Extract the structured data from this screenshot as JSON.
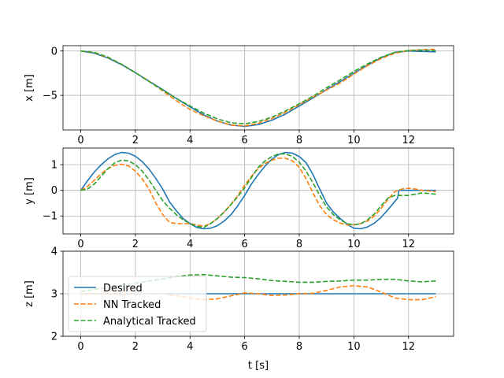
{
  "chart_data": {
    "type": "line",
    "colors": {
      "Desired": "#1f77b4",
      "NN Tracked": "#ff7f0e",
      "Analytical Tracked": "#2ca02c",
      "grid": "#b0b0b0",
      "axes": "#000000"
    },
    "grid": true,
    "xlabel": "t [s]",
    "xlim": [
      -0.65,
      13.65
    ],
    "xticks": [
      0,
      2,
      4,
      6,
      8,
      10,
      12
    ],
    "xtick_labels": [
      "0",
      "2",
      "4",
      "6",
      "8",
      "10",
      "12"
    ],
    "legend": {
      "placement": "lower-left of bottom subplot",
      "entries": [
        {
          "name": "Desired",
          "style": "solid"
        },
        {
          "name": "NN Tracked",
          "style": "dashed"
        },
        {
          "name": "Analytical Tracked",
          "style": "dashed"
        }
      ]
    },
    "subplots": [
      {
        "ylabel": "x [m]",
        "ylim": [
          -8.9,
          0.6
        ],
        "yticks": [
          0,
          -5
        ],
        "ytick_labels": [
          "0",
          "−5"
        ],
        "series": [
          {
            "name": "Desired",
            "style": "solid",
            "x": [
              0,
              0.5,
              1,
              1.5,
              2,
              2.5,
              3,
              3.5,
              4,
              4.5,
              5,
              5.5,
              6,
              6.5,
              7,
              7.5,
              8,
              8.5,
              9,
              9.5,
              10,
              10.5,
              11,
              11.5,
              12,
              12.5,
              13
            ],
            "y": [
              0,
              -0.25,
              -0.8,
              -1.55,
              -2.45,
              -3.4,
              -4.35,
              -5.35,
              -6.3,
              -7.2,
              -7.9,
              -8.35,
              -8.5,
              -8.3,
              -7.8,
              -7.1,
              -6.2,
              -5.3,
              -4.35,
              -3.45,
              -2.5,
              -1.6,
              -0.75,
              -0.15,
              0,
              -0.05,
              -0.1
            ]
          },
          {
            "name": "NN Tracked",
            "style": "dashed",
            "x": [
              0,
              0.5,
              1,
              1.5,
              2,
              2.5,
              3,
              3.5,
              4,
              4.5,
              5,
              5.5,
              6,
              6.5,
              7,
              7.5,
              8,
              8.5,
              9,
              9.5,
              10,
              10.5,
              11,
              11.5,
              12,
              12.5,
              13
            ],
            "y": [
              0,
              -0.2,
              -0.75,
              -1.5,
              -2.45,
              -3.4,
              -4.5,
              -5.6,
              -6.6,
              -7.3,
              -7.9,
              -8.35,
              -8.45,
              -8.15,
              -7.6,
              -6.9,
              -6.05,
              -5.2,
              -4.4,
              -3.6,
              -2.6,
              -1.65,
              -0.85,
              -0.25,
              0.05,
              0.15,
              0.2
            ]
          },
          {
            "name": "Analytical Tracked",
            "style": "dashed",
            "x": [
              0,
              0.5,
              1,
              1.5,
              2,
              2.5,
              3,
              3.5,
              4,
              4.5,
              5,
              5.5,
              6,
              6.5,
              7,
              7.5,
              8,
              8.5,
              9,
              9.5,
              10,
              10.5,
              11,
              11.5,
              12,
              12.5,
              13
            ],
            "y": [
              0,
              -0.15,
              -0.7,
              -1.5,
              -2.45,
              -3.45,
              -4.4,
              -5.35,
              -6.2,
              -7.0,
              -7.65,
              -8.1,
              -8.2,
              -7.95,
              -7.45,
              -6.75,
              -5.95,
              -5.1,
              -4.15,
              -3.25,
              -2.3,
              -1.45,
              -0.7,
              -0.15,
              0.05,
              0.1,
              0.05
            ]
          }
        ]
      },
      {
        "ylabel": "y [m]",
        "ylim": [
          -1.7,
          1.65
        ],
        "yticks": [
          1,
          0,
          -1
        ],
        "ytick_labels": [
          "1",
          "0",
          "−1"
        ],
        "series": [
          {
            "name": "Desired",
            "style": "solid",
            "x": [
              0,
              0.25,
              0.5,
              0.75,
              1,
              1.25,
              1.5,
              1.75,
              2,
              2.25,
              2.5,
              2.75,
              3,
              3.25,
              3.5,
              3.75,
              4,
              4.25,
              4.5,
              4.75,
              5,
              5.25,
              5.5,
              5.75,
              6,
              6.25,
              6.5,
              6.75,
              7,
              7.25,
              7.5,
              7.75,
              8,
              8.25,
              8.5,
              8.75,
              9,
              9.25,
              9.5,
              9.75,
              10,
              10.25,
              10.5,
              10.75,
              11,
              11.25,
              11.5,
              11.6,
              11.65,
              12,
              12.5,
              13
            ],
            "y": [
              0,
              0.38,
              0.72,
              1.0,
              1.23,
              1.4,
              1.48,
              1.45,
              1.33,
              1.12,
              0.83,
              0.46,
              0.05,
              -0.45,
              -0.8,
              -1.1,
              -1.3,
              -1.45,
              -1.5,
              -1.48,
              -1.38,
              -1.2,
              -0.95,
              -0.6,
              -0.2,
              0.25,
              0.62,
              0.95,
              1.22,
              1.4,
              1.48,
              1.45,
              1.32,
              1.08,
              0.62,
              0.05,
              -0.5,
              -0.85,
              -1.1,
              -1.32,
              -1.48,
              -1.5,
              -1.43,
              -1.28,
              -1.05,
              -0.75,
              -0.43,
              -0.3,
              0.0,
              0.0,
              0.0,
              0.0
            ]
          },
          {
            "name": "NN Tracked",
            "style": "dashed",
            "x": [
              0,
              0.25,
              0.5,
              0.75,
              1,
              1.25,
              1.5,
              1.75,
              2,
              2.25,
              2.5,
              2.75,
              3,
              3.25,
              3.5,
              3.75,
              4,
              4.25,
              4.5,
              4.75,
              5,
              5.25,
              5.5,
              5.75,
              6,
              6.25,
              6.5,
              6.75,
              7,
              7.25,
              7.5,
              7.75,
              8,
              8.25,
              8.5,
              8.75,
              9,
              9.25,
              9.5,
              9.75,
              10,
              10.25,
              10.5,
              10.75,
              11,
              11.25,
              11.5,
              11.75,
              12,
              12.25,
              12.5,
              13
            ],
            "y": [
              0,
              0.15,
              0.4,
              0.65,
              0.85,
              0.98,
              1.02,
              0.95,
              0.75,
              0.45,
              0.05,
              -0.5,
              -0.95,
              -1.25,
              -1.3,
              -1.3,
              -1.3,
              -1.35,
              -1.4,
              -1.3,
              -1.1,
              -0.85,
              -0.55,
              -0.2,
              0.2,
              0.55,
              0.85,
              1.05,
              1.18,
              1.25,
              1.25,
              1.15,
              0.9,
              0.45,
              -0.1,
              -0.6,
              -0.95,
              -1.15,
              -1.28,
              -1.35,
              -1.35,
              -1.3,
              -1.2,
              -1.0,
              -0.7,
              -0.35,
              -0.05,
              0.05,
              0.08,
              0.05,
              0.0,
              -0.05
            ]
          },
          {
            "name": "Analytical Tracked",
            "style": "dashed",
            "x": [
              0,
              0.25,
              0.5,
              0.75,
              1,
              1.25,
              1.5,
              1.75,
              2,
              2.25,
              2.5,
              2.75,
              3,
              3.25,
              3.5,
              3.75,
              4,
              4.25,
              4.5,
              4.75,
              5,
              5.25,
              5.5,
              5.75,
              6,
              6.25,
              6.5,
              6.75,
              7,
              7.25,
              7.5,
              7.75,
              8,
              8.25,
              8.5,
              8.75,
              9,
              9.25,
              9.5,
              9.75,
              10,
              10.25,
              10.5,
              10.75,
              11,
              11.25,
              11.5,
              11.75,
              12,
              12.25,
              12.5,
              13
            ],
            "y": [
              0,
              0.05,
              0.25,
              0.55,
              0.85,
              1.08,
              1.18,
              1.15,
              1.0,
              0.75,
              0.4,
              0.0,
              -0.4,
              -0.7,
              -0.95,
              -1.15,
              -1.3,
              -1.4,
              -1.45,
              -1.3,
              -1.1,
              -0.85,
              -0.55,
              -0.25,
              0.1,
              0.5,
              0.9,
              1.15,
              1.32,
              1.42,
              1.42,
              1.32,
              1.1,
              0.75,
              0.3,
              -0.2,
              -0.65,
              -0.95,
              -1.15,
              -1.3,
              -1.35,
              -1.3,
              -1.15,
              -0.92,
              -0.6,
              -0.3,
              -0.2,
              -0.2,
              -0.2,
              -0.15,
              -0.1,
              -0.15
            ]
          }
        ]
      },
      {
        "ylabel": "z [m]",
        "ylim": [
          2,
          4
        ],
        "yticks": [
          4,
          3,
          2
        ],
        "ytick_labels": [
          "4",
          "3",
          "2"
        ],
        "series": [
          {
            "name": "Desired",
            "style": "solid",
            "x": [
              0,
              13
            ],
            "y": [
              3,
              3
            ]
          },
          {
            "name": "NN Tracked",
            "style": "dashed",
            "x": [
              0,
              1,
              2,
              3,
              3.5,
              4,
              4.5,
              5,
              5.5,
              6,
              6.5,
              7,
              7.5,
              8,
              8.5,
              9,
              9.5,
              10,
              10.5,
              11,
              11.5,
              12,
              12.5,
              13
            ],
            "y": [
              3,
              3,
              3,
              3,
              2.95,
              2.9,
              2.86,
              2.88,
              2.95,
              3.02,
              3.0,
              2.96,
              2.97,
              3.0,
              3.01,
              3.08,
              3.16,
              3.19,
              3.16,
              3.04,
              2.9,
              2.86,
              2.86,
              2.93
            ]
          },
          {
            "name": "Analytical Tracked",
            "style": "dashed",
            "x": [
              0,
              0.5,
              1,
              1.5,
              2,
              2.5,
              3,
              3.5,
              4,
              4.5,
              5,
              5.5,
              6,
              6.5,
              7,
              7.5,
              8,
              8.5,
              9,
              9.5,
              10,
              10.5,
              11,
              11.5,
              12,
              12.5,
              13
            ],
            "y": [
              3.05,
              3.1,
              3.15,
              3.2,
              3.25,
              3.3,
              3.35,
              3.4,
              3.44,
              3.45,
              3.42,
              3.39,
              3.38,
              3.35,
              3.31,
              3.29,
              3.27,
              3.27,
              3.29,
              3.3,
              3.32,
              3.32,
              3.34,
              3.34,
              3.3,
              3.28,
              3.3
            ]
          }
        ]
      }
    ]
  }
}
